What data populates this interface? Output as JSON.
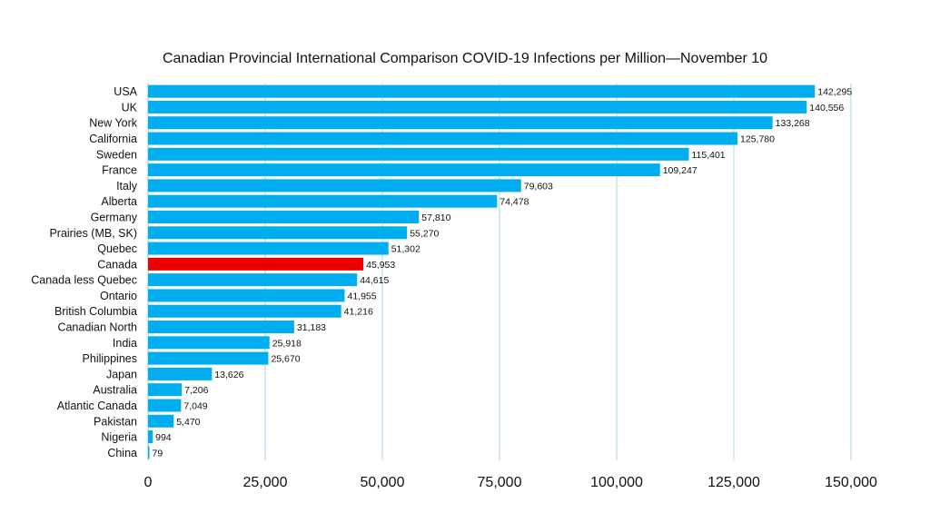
{
  "chart_data": {
    "type": "bar",
    "orientation": "horizontal",
    "title": "Canadian Provincial International Comparison COVID-19 Infections per Million—November 10",
    "xlabel": "",
    "ylabel": "",
    "xlim": [
      0,
      150000
    ],
    "x_ticks": [
      "0",
      "25,000",
      "50,000",
      "75,000",
      "100,000",
      "125,000",
      "150,000"
    ],
    "grid": "vertical",
    "legend": "none",
    "colors": {
      "default": "#00AEEF",
      "highlight": "#EE0000"
    },
    "highlight": "Canada",
    "categories": [
      "USA",
      "UK",
      "New York",
      "California",
      "Sweden",
      "France",
      "Italy",
      "Alberta",
      "Germany",
      "Prairies (MB, SK)",
      "Quebec",
      "Canada",
      "Canada less Quebec",
      "Ontario",
      "British Columbia",
      "Canadian North",
      "India",
      "Philippines",
      "Japan",
      "Australia",
      "Atlantic Canada",
      "Pakistan",
      "Nigeria",
      "China"
    ],
    "values": [
      142295,
      140556,
      133268,
      125780,
      115401,
      109247,
      79603,
      74478,
      57810,
      55270,
      51302,
      45953,
      44615,
      41955,
      41216,
      31183,
      25918,
      25670,
      13626,
      7206,
      7049,
      5470,
      994,
      79
    ],
    "value_labels": [
      "142,295",
      "140,556",
      "133,268",
      "125,780",
      "115,401",
      "109,247",
      "79,603",
      "74,478",
      "57,810",
      "55,270",
      "51,302",
      "45,953",
      "44,615",
      "41,955",
      "41,216",
      "31,183",
      "25,918",
      "25,670",
      "13,626",
      "7,206",
      "7,049",
      "5,470",
      "994",
      "79"
    ]
  }
}
